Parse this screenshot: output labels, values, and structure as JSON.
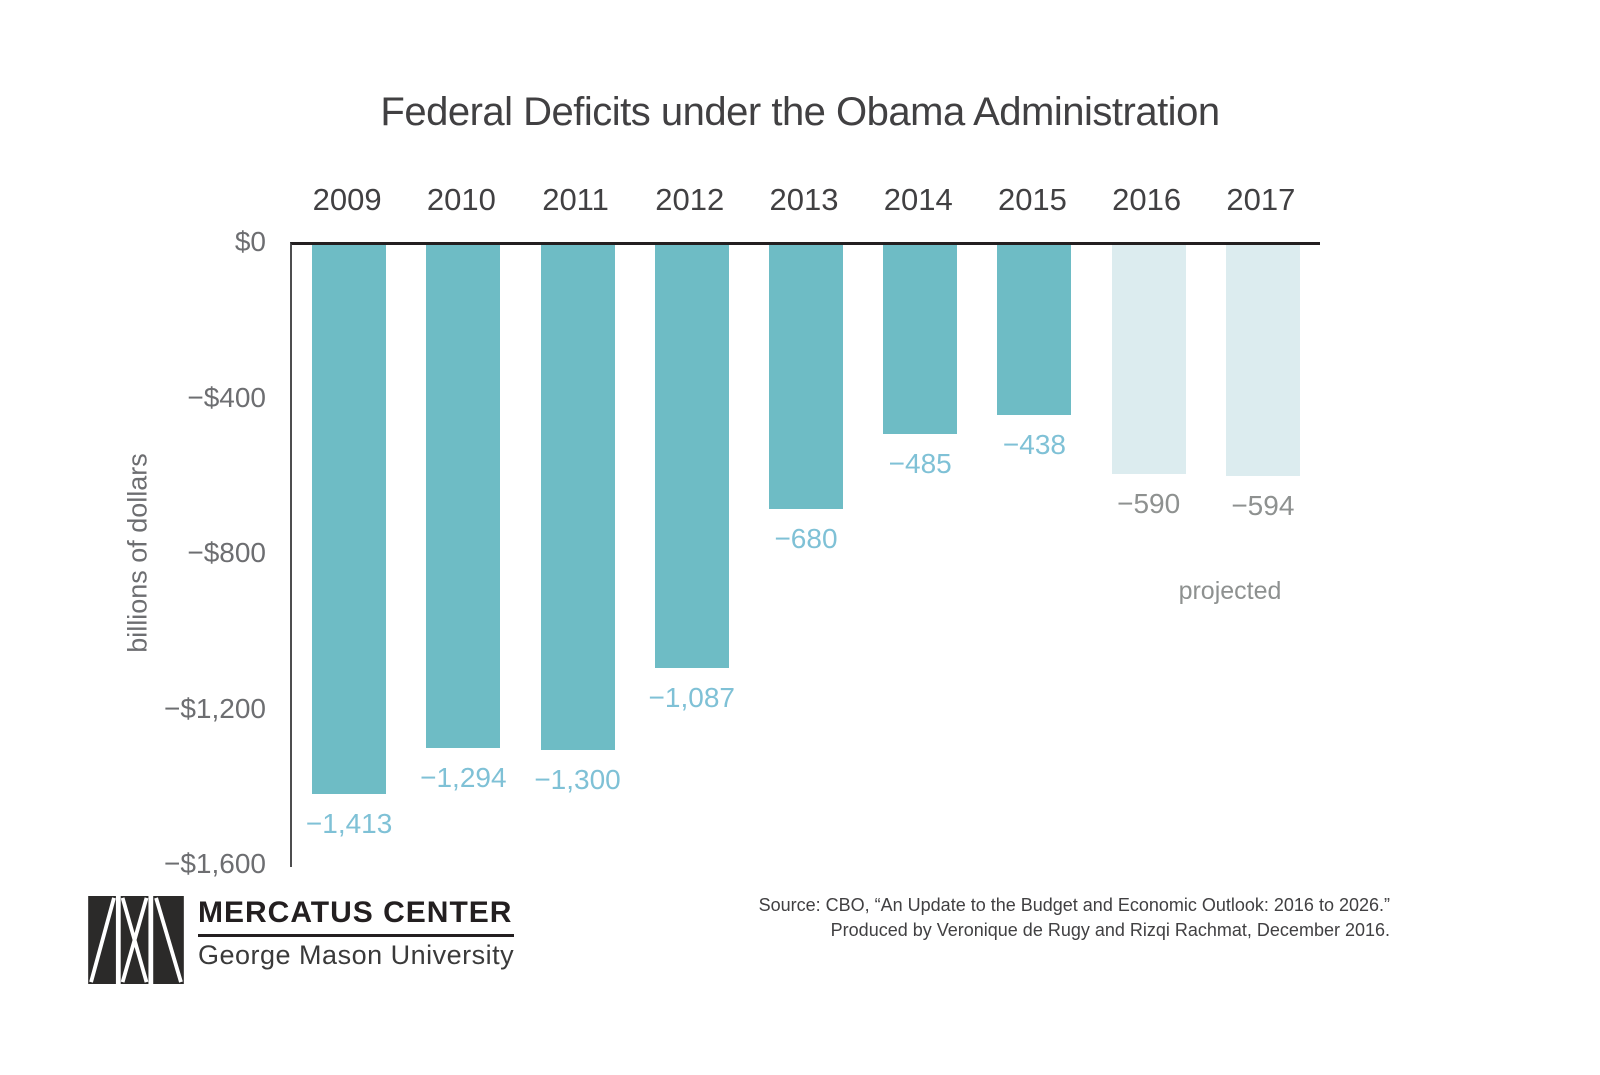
{
  "page": {
    "background": "#ffffff"
  },
  "chart_data": {
    "type": "bar",
    "title": "Federal Deficits under the Obama Administration",
    "ylabel": "billions of dollars",
    "xlabel": "",
    "categories": [
      "2009",
      "2010",
      "2011",
      "2012",
      "2013",
      "2014",
      "2015",
      "2016",
      "2017"
    ],
    "values": [
      -1413,
      -1294,
      -1300,
      -1087,
      -680,
      -485,
      -438,
      -590,
      -594
    ],
    "bar_labels": [
      "−1,413",
      "−1,294",
      "−1,300",
      "−1,087",
      "−680",
      "−485",
      "−438",
      "−590",
      "−594"
    ],
    "projected_flags": [
      false,
      false,
      false,
      false,
      false,
      false,
      false,
      true,
      true
    ],
    "projected_note": "projected",
    "y_axis": {
      "max_abs": 1600,
      "ticks": [
        {
          "label": "$0",
          "value": 0
        },
        {
          "label": "−$400",
          "value": 400
        },
        {
          "label": "−$800",
          "value": 800
        },
        {
          "label": "−$1,200",
          "value": 1200
        },
        {
          "label": "−$1,600",
          "value": 1600
        }
      ]
    },
    "grid": "off",
    "legend": "none",
    "colors": {
      "bar": "#6ebcc5",
      "projected_bar": "#dcecef",
      "value_label": "#7fc1d6",
      "projected_value_label": "#8e9190",
      "axis_line": "#231f20",
      "tick_text": "#6d6e71",
      "title_text": "#414042"
    }
  },
  "footer": {
    "source_line1": "Source: CBO, “An Update to the Budget and Economic Outlook: 2016 to 2026.”",
    "source_line2": "Produced by Veronique de Rugy and Rizqi Rachmat, December 2016.",
    "logo": {
      "name": "MERCATUS CENTER",
      "sub": "George Mason University"
    }
  }
}
